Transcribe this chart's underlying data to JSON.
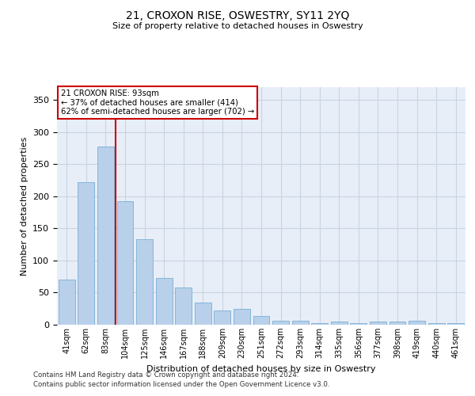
{
  "title": "21, CROXON RISE, OSWESTRY, SY11 2YQ",
  "subtitle": "Size of property relative to detached houses in Oswestry",
  "xlabel": "Distribution of detached houses by size in Oswestry",
  "ylabel": "Number of detached properties",
  "categories": [
    "41sqm",
    "62sqm",
    "83sqm",
    "104sqm",
    "125sqm",
    "146sqm",
    "167sqm",
    "188sqm",
    "209sqm",
    "230sqm",
    "251sqm",
    "272sqm",
    "293sqm",
    "314sqm",
    "335sqm",
    "356sqm",
    "377sqm",
    "398sqm",
    "419sqm",
    "440sqm",
    "461sqm"
  ],
  "bar_values": [
    70,
    222,
    278,
    192,
    133,
    73,
    58,
    35,
    22,
    25,
    14,
    6,
    6,
    3,
    5,
    3,
    5,
    5,
    6,
    3,
    2
  ],
  "property_size": 93,
  "property_bin_index": 2,
  "annotation_title": "21 CROXON RISE: 93sqm",
  "annotation_line1": "← 37% of detached houses are smaller (414)",
  "annotation_line2": "62% of semi-detached houses are larger (702) →",
  "bar_color": "#b8d0ea",
  "bar_edge_color": "#7aafd4",
  "vline_color": "#cc0000",
  "background_color": "#ffffff",
  "plot_bg_color": "#e8eef8",
  "grid_color": "#c8d4e4",
  "annotation_box_edge": "#cc0000",
  "ylim": [
    0,
    370
  ],
  "yticks": [
    0,
    50,
    100,
    150,
    200,
    250,
    300,
    350
  ],
  "footer1": "Contains HM Land Registry data © Crown copyright and database right 2024.",
  "footer2": "Contains public sector information licensed under the Open Government Licence v3.0."
}
